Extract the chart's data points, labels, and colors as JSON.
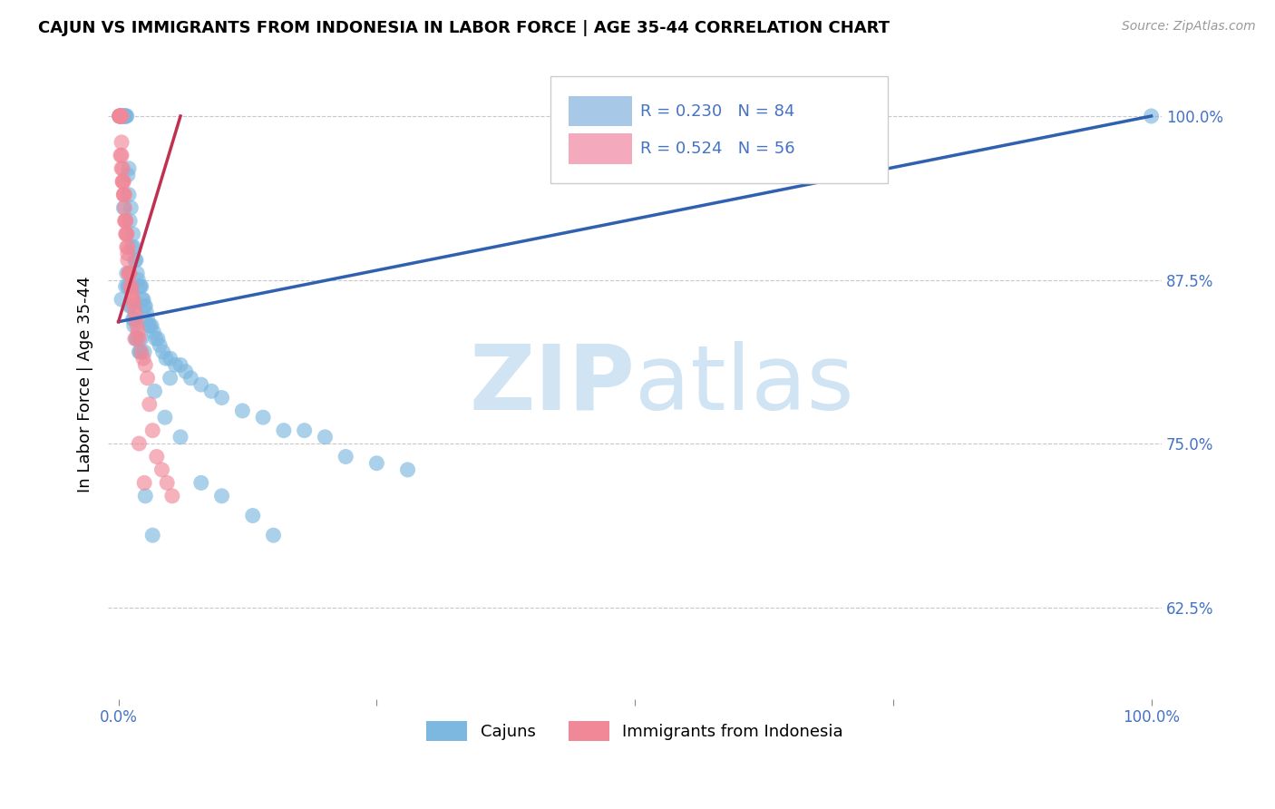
{
  "title": "CAJUN VS IMMIGRANTS FROM INDONESIA IN LABOR FORCE | AGE 35-44 CORRELATION CHART",
  "source": "Source: ZipAtlas.com",
  "ylabel": "In Labor Force | Age 35-44",
  "xlim": [
    -0.01,
    1.01
  ],
  "ylim": [
    0.555,
    1.035
  ],
  "xticks": [
    0.0,
    0.25,
    0.5,
    0.75,
    1.0
  ],
  "xticklabels": [
    "0.0%",
    "",
    "",
    "",
    "100.0%"
  ],
  "ytick_vals": [
    0.625,
    0.75,
    0.875,
    1.0
  ],
  "ytick_labels": [
    "62.5%",
    "75.0%",
    "87.5%",
    "100.0%"
  ],
  "legend_entries": [
    {
      "r": "0.230",
      "n": "84",
      "color": "#a8c8e8"
    },
    {
      "r": "0.524",
      "n": "56",
      "color": "#f4aabc"
    }
  ],
  "bottom_legend": [
    "Cajuns",
    "Immigrants from Indonesia"
  ],
  "cajun_color": "#7db8e0",
  "indonesia_color": "#f08898",
  "cajun_line_color": "#3060b0",
  "indonesia_line_color": "#c03050",
  "background_color": "#ffffff",
  "grid_color": "#c8c8c8",
  "watermark_zip": "ZIP",
  "watermark_atlas": "atlas",
  "watermark_color": "#d0e4f4",
  "cajun_scatter_x": [
    0.001,
    0.002,
    0.003,
    0.004,
    0.005,
    0.006,
    0.006,
    0.007,
    0.007,
    0.008,
    0.009,
    0.01,
    0.01,
    0.011,
    0.012,
    0.013,
    0.014,
    0.015,
    0.016,
    0.017,
    0.018,
    0.019,
    0.02,
    0.021,
    0.022,
    0.023,
    0.024,
    0.025,
    0.026,
    0.027,
    0.028,
    0.03,
    0.032,
    0.034,
    0.036,
    0.038,
    0.04,
    0.043,
    0.046,
    0.05,
    0.055,
    0.06,
    0.065,
    0.07,
    0.08,
    0.09,
    0.1,
    0.12,
    0.14,
    0.16,
    0.18,
    0.2,
    0.22,
    0.25,
    0.28,
    0.05,
    0.03,
    0.015,
    0.02,
    0.01,
    0.008,
    0.012,
    0.015,
    0.018,
    0.022,
    0.025,
    0.035,
    0.045,
    0.06,
    0.08,
    0.1,
    0.13,
    0.15,
    0.005,
    0.003,
    0.007,
    0.009,
    0.011,
    0.014,
    0.017,
    0.021,
    0.026,
    0.033,
    1.0
  ],
  "cajun_scatter_y": [
    1.0,
    1.0,
    1.0,
    1.0,
    1.0,
    1.0,
    1.0,
    1.0,
    1.0,
    1.0,
    0.955,
    0.94,
    0.96,
    0.92,
    0.93,
    0.9,
    0.91,
    0.9,
    0.89,
    0.89,
    0.88,
    0.875,
    0.87,
    0.87,
    0.87,
    0.86,
    0.86,
    0.855,
    0.855,
    0.85,
    0.845,
    0.84,
    0.84,
    0.835,
    0.83,
    0.83,
    0.825,
    0.82,
    0.815,
    0.815,
    0.81,
    0.81,
    0.805,
    0.8,
    0.795,
    0.79,
    0.785,
    0.775,
    0.77,
    0.76,
    0.76,
    0.755,
    0.74,
    0.735,
    0.73,
    0.8,
    0.84,
    0.84,
    0.82,
    0.87,
    0.88,
    0.855,
    0.845,
    0.83,
    0.83,
    0.82,
    0.79,
    0.77,
    0.755,
    0.72,
    0.71,
    0.695,
    0.68,
    0.93,
    0.86,
    0.87,
    0.87,
    0.855,
    0.845,
    0.83,
    0.82,
    0.71,
    0.68,
    1.0
  ],
  "indonesia_scatter_x": [
    0.001,
    0.001,
    0.001,
    0.002,
    0.002,
    0.002,
    0.003,
    0.003,
    0.003,
    0.004,
    0.004,
    0.005,
    0.005,
    0.006,
    0.006,
    0.007,
    0.007,
    0.008,
    0.008,
    0.009,
    0.009,
    0.01,
    0.011,
    0.012,
    0.013,
    0.014,
    0.015,
    0.016,
    0.017,
    0.018,
    0.019,
    0.02,
    0.022,
    0.024,
    0.026,
    0.028,
    0.03,
    0.033,
    0.037,
    0.042,
    0.047,
    0.052,
    0.002,
    0.003,
    0.004,
    0.005,
    0.006,
    0.007,
    0.008,
    0.009,
    0.01,
    0.012,
    0.014,
    0.016,
    0.02,
    0.025
  ],
  "indonesia_scatter_y": [
    1.0,
    1.0,
    1.0,
    1.0,
    1.0,
    1.0,
    1.0,
    0.98,
    0.97,
    0.96,
    0.95,
    0.94,
    0.95,
    0.94,
    0.92,
    0.92,
    0.91,
    0.9,
    0.91,
    0.89,
    0.895,
    0.88,
    0.88,
    0.87,
    0.865,
    0.86,
    0.855,
    0.85,
    0.845,
    0.84,
    0.835,
    0.83,
    0.82,
    0.815,
    0.81,
    0.8,
    0.78,
    0.76,
    0.74,
    0.73,
    0.72,
    0.71,
    0.97,
    0.96,
    0.95,
    0.94,
    0.93,
    0.92,
    0.91,
    0.9,
    0.88,
    0.87,
    0.86,
    0.83,
    0.75,
    0.72
  ],
  "cajun_trend_x": [
    0.0,
    1.0
  ],
  "cajun_trend_y": [
    0.843,
    1.0
  ],
  "indonesia_trend_x": [
    0.0,
    0.06
  ],
  "indonesia_trend_y": [
    0.843,
    1.0
  ]
}
